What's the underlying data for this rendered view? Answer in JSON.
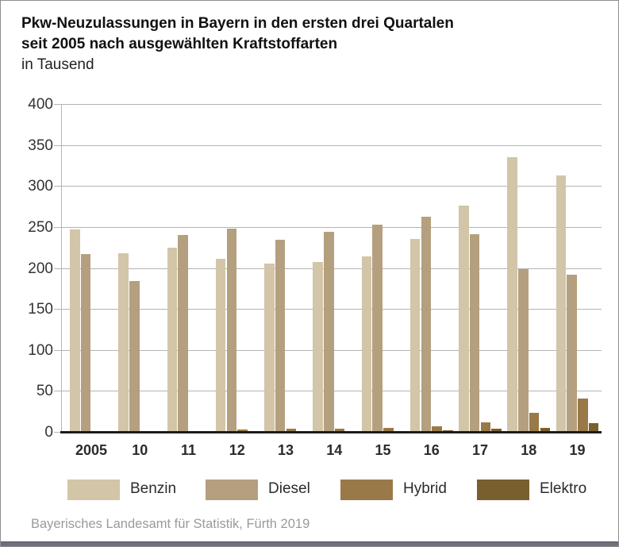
{
  "title": {
    "line1": "Pkw-Neuzulassungen in Bayern in den ersten drei Quartalen",
    "line2": "seit 2005 nach ausgewählten Kraftstoffarten",
    "subtitle": "in Tausend"
  },
  "source": "Bayerisches Landesamt für Statistik, Fürth 2019",
  "colors": {
    "benzin": "#d2c5a8",
    "diesel": "#b4a07e",
    "hybrid": "#9a7948",
    "elektro": "#7a5f2e",
    "gridline": "#b4b4b4",
    "baseline": "#1c1c1c",
    "footer_bar": "#70707a",
    "source_text": "#9a9a9a"
  },
  "chart_data": {
    "type": "bar",
    "title": "Pkw-Neuzulassungen in Bayern in den ersten drei Quartalen seit 2005 nach ausgewählten Kraftstoffarten",
    "subtitle": "in Tausend",
    "categories": [
      "2005",
      "10",
      "11",
      "12",
      "13",
      "14",
      "15",
      "16",
      "17",
      "18",
      "19"
    ],
    "series": [
      {
        "name": "Benzin",
        "color": "#d2c5a8",
        "values": [
          246,
          217,
          224,
          210,
          204,
          206,
          213,
          234,
          275,
          334,
          312
        ]
      },
      {
        "name": "Diesel",
        "color": "#b4a07e",
        "values": [
          216,
          183,
          239,
          247,
          233,
          243,
          252,
          262,
          240,
          198,
          191
        ]
      },
      {
        "name": "Hybrid",
        "color": "#9a7948",
        "values": [
          0,
          0,
          0,
          2,
          3,
          3,
          4,
          6,
          11,
          22,
          40
        ]
      },
      {
        "name": "Elektro",
        "color": "#7a5f2e",
        "values": [
          0,
          0,
          0,
          0,
          0,
          0,
          0,
          1,
          3,
          4,
          10
        ]
      }
    ],
    "xlabel": "",
    "ylabel": "in Tausend",
    "ylim": [
      0,
      400
    ],
    "yticks": [
      400,
      350,
      300,
      250,
      200,
      150,
      100,
      50,
      0
    ],
    "grid": true,
    "legend_position": "bottom"
  },
  "legend_x_positions": [
    84,
    258,
    428,
    600
  ]
}
